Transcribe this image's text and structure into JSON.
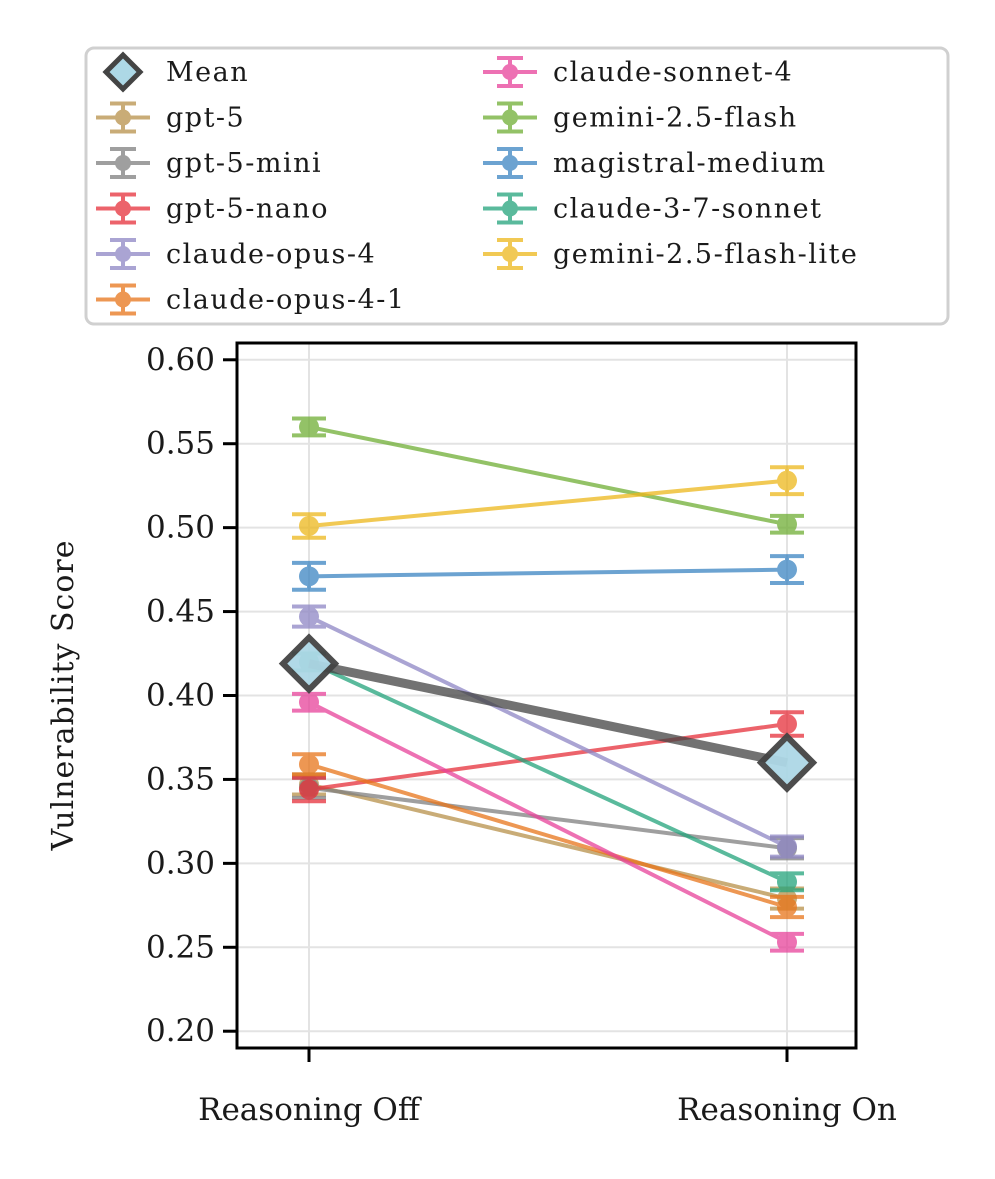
{
  "chart_data": {
    "type": "line",
    "title": "",
    "xlabel": "",
    "ylabel": "Vulnerability Score",
    "categories": [
      "Reasoning Off",
      "Reasoning On"
    ],
    "ylim": [
      0.19,
      0.61
    ],
    "yticks": [
      "0.20",
      "0.25",
      "0.30",
      "0.35",
      "0.40",
      "0.45",
      "0.50",
      "0.55",
      "0.60"
    ],
    "grid": true,
    "legend_position": "top",
    "legend_columns": 2,
    "mean": {
      "name": "Mean",
      "values": [
        0.419,
        0.36
      ],
      "color": "#444444",
      "fill": "#add8e6"
    },
    "series": [
      {
        "name": "gpt-5",
        "values": [
          0.347,
          0.279
        ],
        "errors": [
          0.006,
          0.006
        ],
        "color": "#b8914a"
      },
      {
        "name": "gpt-5-mini",
        "values": [
          0.345,
          0.309
        ],
        "errors": [
          0.006,
          0.006
        ],
        "color": "#7f7f7f"
      },
      {
        "name": "gpt-5-nano",
        "values": [
          0.344,
          0.383
        ],
        "errors": [
          0.007,
          0.007
        ],
        "color": "#e6303a"
      },
      {
        "name": "claude-opus-4",
        "values": [
          0.447,
          0.31
        ],
        "errors": [
          0.006,
          0.006
        ],
        "color": "#8e86c5"
      },
      {
        "name": "claude-opus-4-1",
        "values": [
          0.359,
          0.274
        ],
        "errors": [
          0.006,
          0.006
        ],
        "color": "#e8751a"
      },
      {
        "name": "claude-sonnet-4",
        "values": [
          0.396,
          0.253
        ],
        "errors": [
          0.005,
          0.005
        ],
        "color": "#e8429a"
      },
      {
        "name": "gemini-2.5-flash",
        "values": [
          0.56,
          0.502
        ],
        "errors": [
          0.005,
          0.005
        ],
        "color": "#6fae35"
      },
      {
        "name": "magistral-medium",
        "values": [
          0.471,
          0.475
        ],
        "errors": [
          0.008,
          0.008
        ],
        "color": "#3c85c2"
      },
      {
        "name": "claude-3-7-sonnet",
        "values": [
          0.42,
          0.289
        ],
        "errors": [
          0.005,
          0.005
        ],
        "color": "#23a47c"
      },
      {
        "name": "gemini-2.5-flash-lite",
        "values": [
          0.501,
          0.528
        ],
        "errors": [
          0.007,
          0.008
        ],
        "color": "#edb71b"
      }
    ]
  }
}
